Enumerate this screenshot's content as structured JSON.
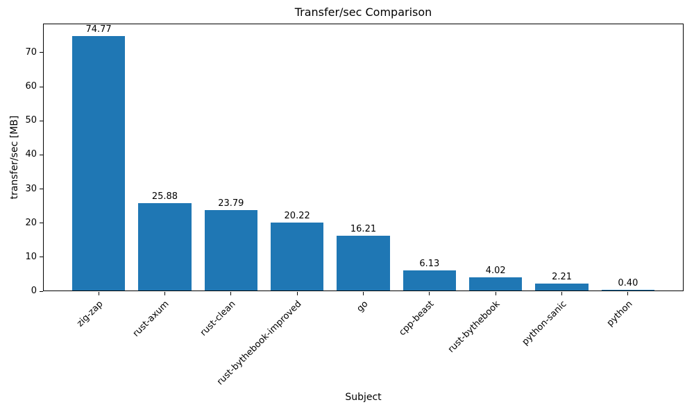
{
  "chart_data": {
    "type": "bar",
    "title": "Transfer/sec Comparison",
    "xlabel": "Subject",
    "ylabel": "transfer/sec [MB]",
    "categories": [
      "zig-zap",
      "rust-axum",
      "rust-clean",
      "rust-bythebook-improved",
      "go",
      "cpp-beast",
      "rust-bythebook",
      "python-sanic",
      "python"
    ],
    "values": [
      74.77,
      25.88,
      23.79,
      20.22,
      16.21,
      6.13,
      4.02,
      2.21,
      0.4
    ],
    "value_labels": [
      "74.77",
      "25.88",
      "23.79",
      "20.22",
      "16.21",
      "6.13",
      "4.02",
      "2.21",
      "0.40"
    ],
    "ylim": [
      0,
      78.51
    ],
    "yticks": [
      0,
      10,
      20,
      30,
      40,
      50,
      60,
      70
    ],
    "grid": false,
    "legend": null,
    "colors": {
      "bar": "#1f77b4",
      "text": "#000000",
      "axis": "#000000",
      "background": "#ffffff"
    }
  }
}
